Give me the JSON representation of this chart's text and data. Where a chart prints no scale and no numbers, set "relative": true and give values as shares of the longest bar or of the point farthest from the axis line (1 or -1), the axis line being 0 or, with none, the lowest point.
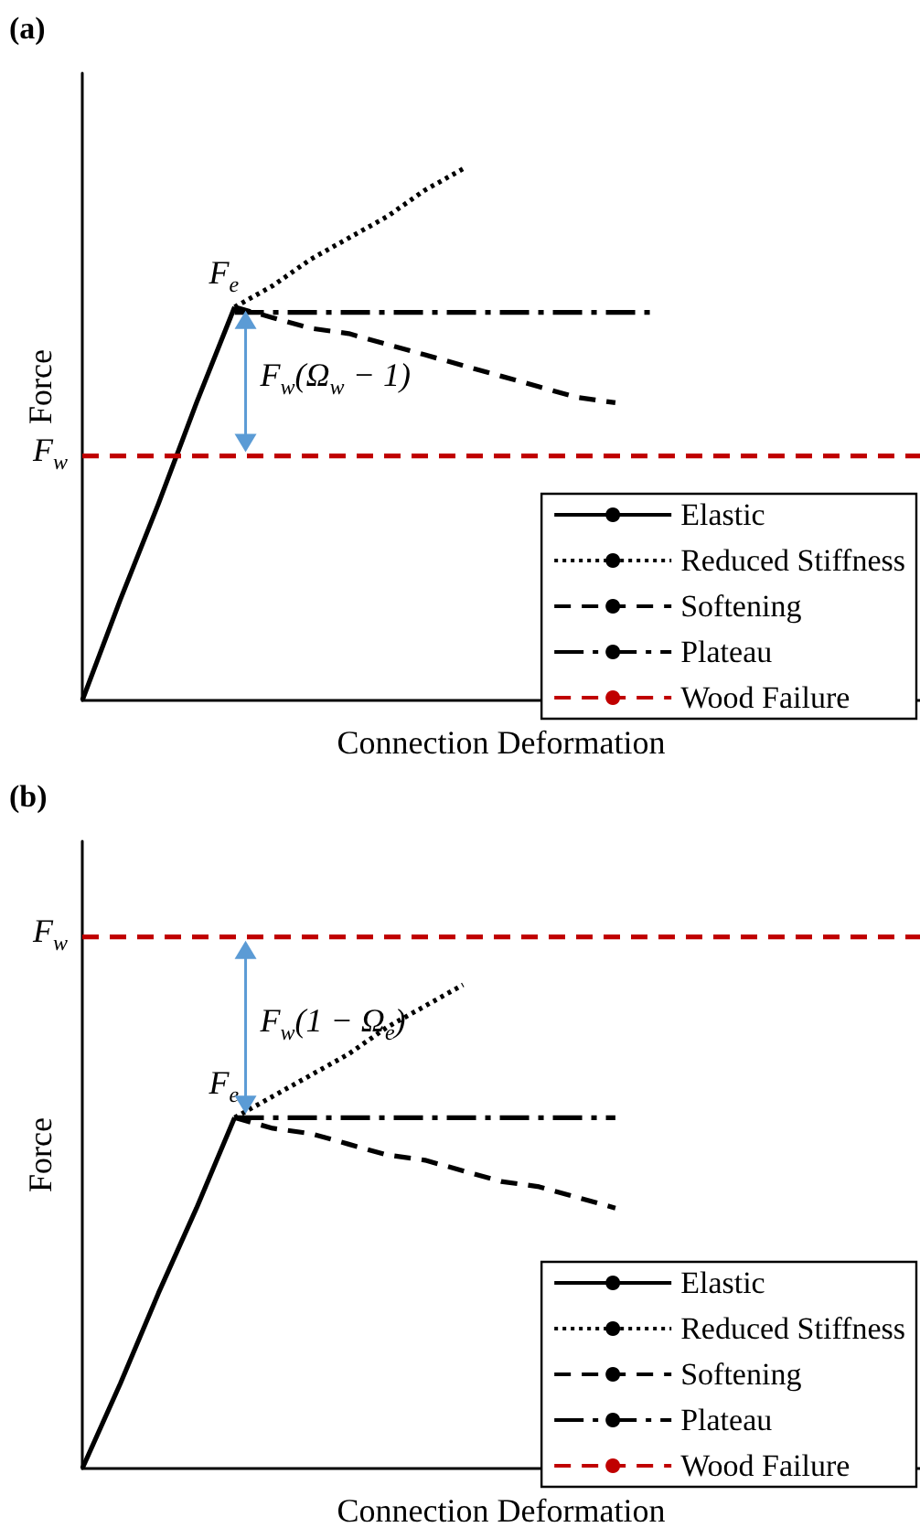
{
  "chart_data": [
    {
      "type": "line",
      "title": "(a)",
      "xlabel": "Connection Deformation",
      "ylabel": "Force",
      "relative": true,
      "tick_labels": false,
      "grid": false,
      "legend": "bottom right",
      "marker": "none",
      "categories": [
        null,
        null,
        null,
        null,
        null,
        null,
        null,
        null,
        null,
        null,
        null,
        null,
        null,
        null,
        null,
        null,
        null,
        null,
        null,
        null,
        null,
        null,
        null
      ],
      "series": [
        {
          "name": "Elastic",
          "color": "#000000",
          "line_style": "solid",
          "values": [
            0,
            0.19,
            0.37,
            0.56,
            0.74,
            null,
            null,
            null,
            null,
            null,
            null,
            null,
            null,
            null,
            null,
            null,
            null,
            null,
            null,
            null,
            null,
            null,
            null
          ]
        },
        {
          "name": "Reduced Stiffness",
          "color": "#000000",
          "line_style": "dotted",
          "values": [
            null,
            null,
            null,
            null,
            0.74,
            0.78,
            0.83,
            0.87,
            0.91,
            0.96,
            1,
            null,
            null,
            null,
            null,
            null,
            null,
            null,
            null,
            null,
            null,
            null,
            null
          ]
        },
        {
          "name": "Softening",
          "color": "#000000",
          "line_style": "dashed",
          "values": [
            null,
            null,
            null,
            null,
            0.74,
            0.72,
            0.7,
            0.69,
            0.67,
            0.65,
            0.63,
            0.61,
            0.59,
            0.57,
            0.56,
            null,
            null,
            null,
            null,
            null,
            null,
            null,
            null
          ]
        },
        {
          "name": "Plateau",
          "color": "#000000",
          "line_style": "dashdot",
          "values": [
            null,
            null,
            null,
            null,
            0.73,
            0.73,
            0.73,
            0.73,
            0.73,
            0.73,
            0.73,
            0.73,
            0.73,
            0.73,
            0.73,
            0.73,
            null,
            null,
            null,
            null,
            null,
            null,
            null
          ]
        },
        {
          "name": "Wood Failure",
          "color": "#c00000",
          "line_style": "dashed",
          "values": [
            0.46,
            0.46,
            0.46,
            0.46,
            0.46,
            0.46,
            0.46,
            0.46,
            0.46,
            0.46,
            0.46,
            0.46,
            0.46,
            0.46,
            0.46,
            0.46,
            0.46,
            0.46,
            0.46,
            0.46,
            0.46,
            0.46,
            0.46
          ]
        }
      ],
      "annotations": [
        "F$_{e}$",
        "F$_{w}$",
        "F$_{w}$(Ω$_{w}$ − 1)"
      ]
    },
    {
      "type": "line",
      "title": "(b)",
      "xlabel": "Connection Deformation",
      "ylabel": "Force",
      "relative": true,
      "tick_labels": false,
      "grid": false,
      "legend": "bottom right",
      "marker": "none",
      "categories": [
        null,
        null,
        null,
        null,
        null,
        null,
        null,
        null,
        null,
        null,
        null,
        null,
        null,
        null,
        null,
        null,
        null,
        null,
        null,
        null,
        null,
        null,
        null
      ],
      "series": [
        {
          "name": "Elastic",
          "color": "#000000",
          "line_style": "solid",
          "values": [
            0,
            0.16,
            0.33,
            0.49,
            0.66,
            null,
            null,
            null,
            null,
            null,
            null,
            null,
            null,
            null,
            null,
            null,
            null,
            null,
            null,
            null,
            null,
            null,
            null
          ]
        },
        {
          "name": "Reduced Stiffness",
          "color": "#000000",
          "line_style": "dotted",
          "values": [
            null,
            null,
            null,
            null,
            0.66,
            0.7,
            0.74,
            0.78,
            0.83,
            0.87,
            0.91,
            null,
            null,
            null,
            null,
            null,
            null,
            null,
            null,
            null,
            null,
            null,
            null
          ]
        },
        {
          "name": "Softening",
          "color": "#000000",
          "line_style": "dashed",
          "values": [
            null,
            null,
            null,
            null,
            0.66,
            0.64,
            0.63,
            0.61,
            0.59,
            0.58,
            0.56,
            0.54,
            0.53,
            0.51,
            0.49,
            null,
            null,
            null,
            null,
            null,
            null,
            null,
            null
          ]
        },
        {
          "name": "Plateau",
          "color": "#000000",
          "line_style": "dashdot",
          "values": [
            null,
            null,
            null,
            null,
            0.66,
            0.66,
            0.66,
            0.66,
            0.66,
            0.66,
            0.66,
            0.66,
            0.66,
            0.66,
            0.66,
            null,
            null,
            null,
            null,
            null,
            null,
            null,
            null
          ]
        },
        {
          "name": "Wood Failure",
          "color": "#c00000",
          "line_style": "dashed",
          "values": [
            1,
            1,
            1,
            1,
            1,
            1,
            1,
            1,
            1,
            1,
            1,
            1,
            1,
            1,
            1,
            1,
            1,
            1,
            1,
            1,
            1,
            1,
            1
          ]
        }
      ],
      "annotations": [
        "F$_{e}$",
        "F$_{w}$",
        "F$_{w}$(1 − Ω$_{e}$)"
      ]
    }
  ]
}
